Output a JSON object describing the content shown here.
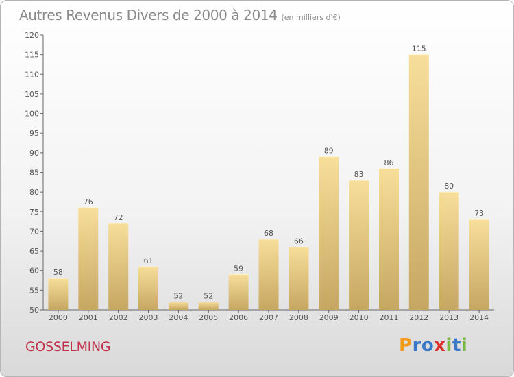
{
  "header": {
    "title": "Autres Revenus Divers de 2000 à 2014",
    "unit": "(en milliers d'€)"
  },
  "footer": {
    "town": "GOSSELMING",
    "logo": [
      "P",
      "r",
      "o",
      "x",
      "i",
      "t",
      "i"
    ],
    "logo_colors": [
      "#f39a1e",
      "#3a79c7",
      "#3a79c7",
      "#d9322e",
      "#7cb643",
      "#3a79c7",
      "#7cb643"
    ]
  },
  "chart_data": {
    "type": "bar",
    "title": "Autres Revenus Divers de 2000 à 2014",
    "subtitle": "(en milliers d'€)",
    "categories": [
      "2000",
      "2001",
      "2002",
      "2003",
      "2004",
      "2005",
      "2006",
      "2007",
      "2008",
      "2009",
      "2010",
      "2011",
      "2012",
      "2013",
      "2014"
    ],
    "values": [
      58,
      76,
      72,
      61,
      52,
      52,
      59,
      68,
      66,
      89,
      83,
      86,
      115,
      80,
      73
    ],
    "ylim": [
      50,
      120
    ],
    "yticks": [
      50,
      55,
      60,
      65,
      70,
      75,
      80,
      85,
      90,
      95,
      100,
      105,
      110,
      115,
      120
    ],
    "grid": false,
    "bar_color_top": "#f7de9a",
    "bar_color_bottom": "#c6a762",
    "legend": "none"
  }
}
